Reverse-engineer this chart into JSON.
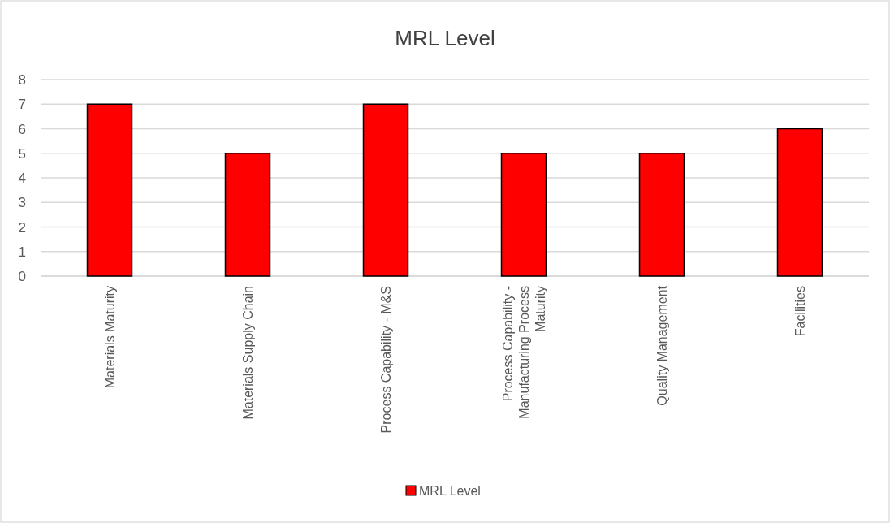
{
  "chart_data": {
    "type": "bar",
    "title": "MRL Level",
    "categories": [
      "Materials Maturity",
      "Materials Supply Chain",
      "Process Capability - M&S",
      "Process Capability - Manufacturing Process Maturity",
      "Quality Management",
      "Facilities"
    ],
    "series": [
      {
        "name": "MRL Level",
        "color": "#ff0000",
        "values": [
          7,
          5,
          7,
          5,
          5,
          6
        ]
      }
    ],
    "ylim": [
      0,
      8
    ],
    "yticks": [
      0,
      1,
      2,
      3,
      4,
      5,
      6,
      7,
      8
    ],
    "grid": "y",
    "legend": "bottom"
  }
}
